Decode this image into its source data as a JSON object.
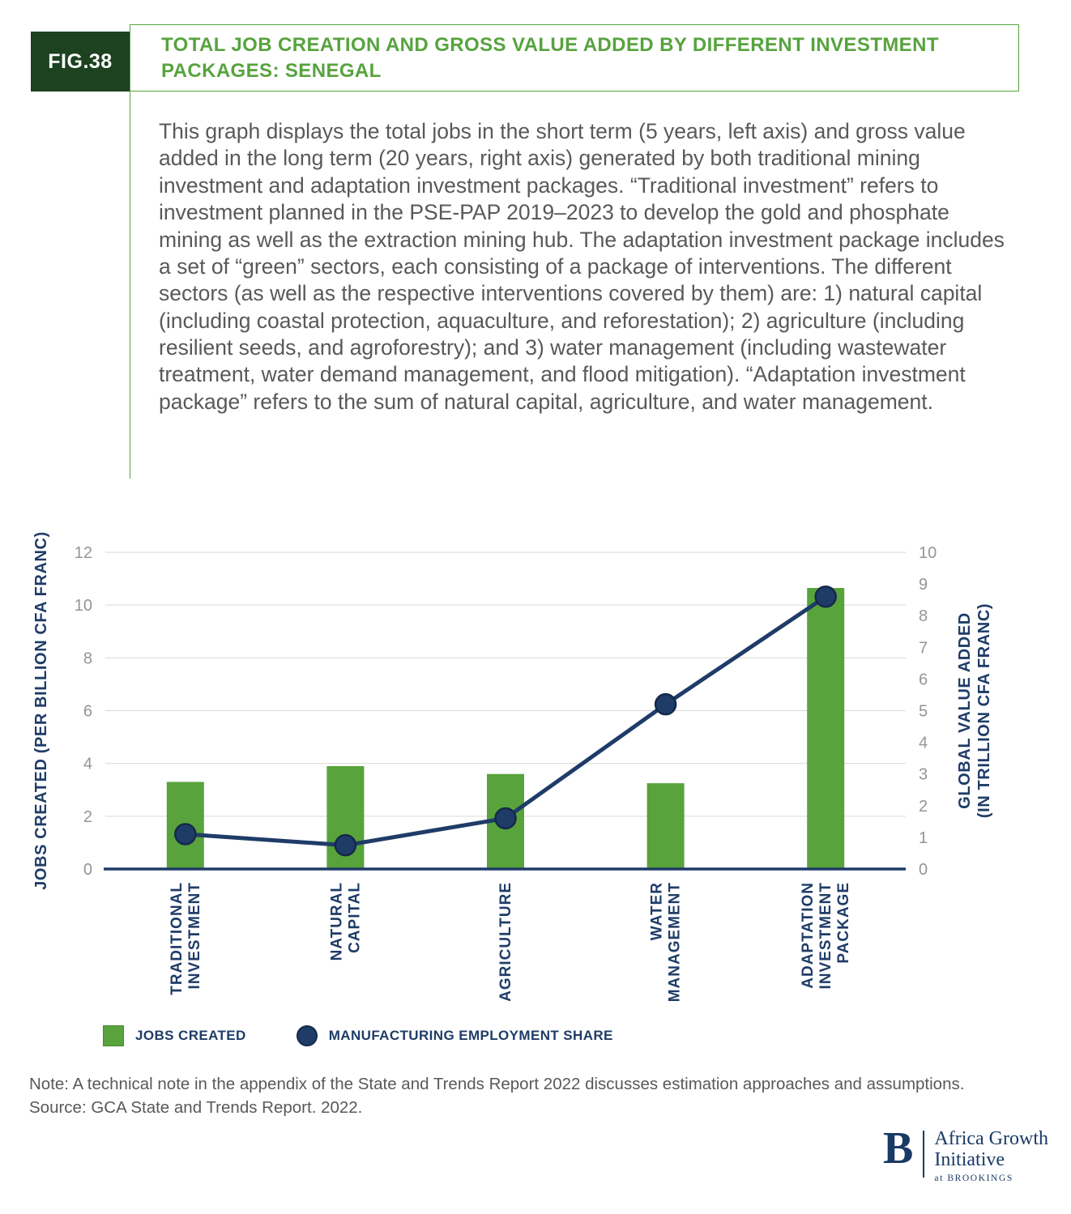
{
  "header": {
    "fig_label": "FIG.38",
    "title": "TOTAL JOB CREATION AND GROSS VALUE ADDED BY DIFFERENT INVESTMENT PACKAGES: SENEGAL",
    "description": "This graph displays the total jobs in the short term (5 years, left axis) and gross value added in the long term (20 years, right axis) generated by both traditional mining investment and adaptation investment packages. “Traditional investment” refers to investment planned in the PSE-PAP 2019–2023 to develop the gold and phosphate mining as well as the extraction mining hub. The adaptation investment package includes a set of “green” sectors, each consisting of a package of interventions. The different sectors (as well as the respective interventions covered by them) are: 1) natural capital (including coastal protection, aquaculture, and reforestation); 2) agriculture (including resilient seeds, and agroforestry); and 3) water management (including wastewater treatment, water demand management, and flood mitigation). “Adaptation investment package” refers to the sum of natural capital, agriculture, and water management."
  },
  "chart_data": {
    "type": "bar+line",
    "title": "TOTAL JOB CREATION AND GROSS VALUE ADDED BY DIFFERENT INVESTMENT PACKAGES: SENEGAL",
    "categories": [
      "TRADITIONAL\nINVESTMENT",
      "NATURAL\nCAPITAL",
      "AGRICULTURE",
      "WATER\nMANAGEMENT",
      "ADAPTATION\nINVESTMENT\nPACKAGE"
    ],
    "series": [
      {
        "name": "JOBS CREATED",
        "type": "bar",
        "axis": "left",
        "color": "#58A33C",
        "values": [
          3.3,
          3.9,
          3.6,
          3.25,
          10.65
        ]
      },
      {
        "name": "MANUFACTURING EMPLOYMENT SHARE",
        "type": "line",
        "axis": "right",
        "color": "#1F3C68",
        "marker_edge": "#14294B",
        "values": [
          1.1,
          0.75,
          1.6,
          5.2,
          8.6
        ]
      }
    ],
    "left_axis": {
      "label": "JOBS CREATED (PER BILLION CFA FRANC)",
      "min": 0,
      "max": 12,
      "ticks": [
        0,
        2,
        4,
        6,
        8,
        10,
        12
      ]
    },
    "right_axis": {
      "label": "GLOBAL VALUE ADDED\n(IN TRILLION CFA FRANC)",
      "min": 0,
      "max": 10,
      "ticks": [
        0,
        1,
        2,
        3,
        4,
        5,
        6,
        7,
        8,
        9,
        10
      ]
    },
    "grid": true,
    "gridline_color": "#d9d9d9",
    "baseline_color": "#1F3C68",
    "legend_position": "bottom-left"
  },
  "legend": {
    "items": [
      {
        "label": "JOBS CREATED",
        "swatch": "green-square",
        "color": "#58A33C"
      },
      {
        "label": "MANUFACTURING EMPLOYMENT SHARE",
        "swatch": "navy-circle",
        "color": "#1F3C68"
      }
    ]
  },
  "footer": {
    "note": "Note: A technical note in the appendix of the State and Trends Report 2022 discusses estimation approaches and assumptions.",
    "source": "Source: GCA State and Trends Report. 2022."
  },
  "brand": {
    "monogram": "B",
    "name_line1": "Africa Growth",
    "name_line2": "Initiative",
    "tagline": "at BROOKINGS"
  },
  "colors": {
    "accent_green": "#57A33E",
    "badge_green": "#1C4220",
    "bar_green": "#58A33C",
    "navy": "#1F3C68",
    "text_gray": "#58595B",
    "tick_gray": "#939598"
  }
}
